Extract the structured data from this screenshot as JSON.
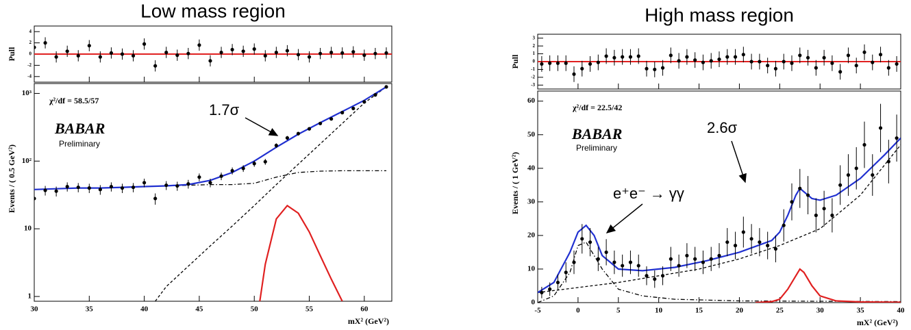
{
  "chart_data": [
    {
      "type": "scatter",
      "title": "Low mass region",
      "xlabel": "mX² (GeV²)",
      "xlim": [
        30,
        62.5
      ],
      "xticks": [
        30,
        35,
        40,
        45,
        50,
        55,
        60
      ],
      "x": [
        30,
        31,
        32,
        33,
        34,
        35,
        36,
        37,
        38,
        39,
        40,
        41,
        42,
        43,
        44,
        45,
        46,
        47,
        48,
        49,
        50,
        51,
        52,
        53,
        54,
        55,
        56,
        57,
        58,
        59,
        60,
        61,
        62
      ],
      "annotations": [
        "χ²/df = 58.5/57",
        "BABAR",
        "Preliminary",
        "1.7σ"
      ],
      "pull": {
        "ylabel": "Pull",
        "ylim": [
          -5,
          5
        ],
        "yticks": [
          -4,
          -2,
          0,
          2,
          4
        ],
        "reference": 0,
        "reference_color": "#e02020",
        "values": [
          1.2,
          2,
          -0.5,
          0.5,
          -0.3,
          1.5,
          -0.5,
          0.2,
          0,
          -0.3,
          1.8,
          -2.1,
          0.3,
          -0.2,
          0.1,
          1.6,
          -1.2,
          0.3,
          0.8,
          0.5,
          0.9,
          -0.3,
          0.3,
          0.6,
          -0.1,
          -0.5,
          0.1,
          0.3,
          0.2,
          0.4,
          -0.2,
          0.1,
          0.2
        ],
        "errors": [
          1,
          1,
          1,
          1,
          1,
          1,
          1,
          1,
          1,
          1,
          1,
          1,
          1,
          1,
          1,
          1,
          1,
          1,
          1,
          1,
          1,
          1,
          1,
          1,
          1,
          1,
          1,
          1,
          1,
          1,
          1,
          1,
          1
        ]
      },
      "main": {
        "ylabel": "Events / ( 0.5 GeV²)",
        "log": true,
        "ylim": [
          0.85,
          1400
        ],
        "yticks": [
          1,
          10,
          {
            "value": 100,
            "label": "10²"
          },
          {
            "value": 1000,
            "label": "10³"
          }
        ],
        "color": "#000000",
        "values": [
          28,
          37,
          36,
          42,
          41,
          40,
          38,
          42,
          40,
          41,
          48,
          28,
          44,
          43,
          46,
          58,
          48,
          60,
          72,
          78,
          92,
          98,
          170,
          220,
          255,
          300,
          360,
          420,
          520,
          600,
          750,
          950,
          1250
        ],
        "errors": [
          5,
          6,
          6,
          6.5,
          6.4,
          6.3,
          6.2,
          6.5,
          6.3,
          6.4,
          7,
          5.3,
          6.6,
          6.6,
          6.8,
          7.6,
          7,
          7.7,
          8.5,
          8.8,
          9.6,
          9.9,
          13,
          15,
          16,
          17,
          19,
          20,
          23,
          24,
          27,
          31,
          35
        ],
        "curves": [
          {
            "style": "dashed",
            "color": "#000000",
            "x": [
              41,
              42,
              44,
              46,
              48,
              50,
              52,
              54,
              56,
              58,
              60,
              62
            ],
            "values": [
              0.85,
              1.4,
              2.8,
              5.6,
              11,
              22,
              45,
              90,
              180,
              360,
              720,
              1250
            ]
          },
          {
            "style": "dashdot",
            "color": "#000000",
            "x": [
              30,
              32,
              34,
              36,
              38,
              40,
              42,
              44,
              46,
              48,
              50,
              52,
              54,
              56,
              58,
              60,
              62
            ],
            "values": [
              38,
              39,
              40,
              40,
              41,
              42,
              43,
              44,
              45,
              45,
              47,
              58,
              68,
              71,
              72,
              72,
              72
            ]
          },
          {
            "style": "solid",
            "color": "#e02020",
            "x": [
              50.5,
              51,
              52,
              53,
              54,
              55,
              56,
              57,
              58
            ],
            "values": [
              0.85,
              3,
              14,
              22,
              17,
              9,
              4,
              1.8,
              0.85
            ]
          },
          {
            "style": "solid",
            "color": "#2030d0",
            "x": [
              30,
              32,
              34,
              36,
              38,
              40,
              42,
              44,
              46,
              48,
              50,
              52,
              54,
              56,
              58,
              60,
              62
            ],
            "values": [
              38,
              39,
              40,
              40,
              41,
              42,
              43,
              45,
              52,
              68,
              100,
              160,
              250,
              370,
              540,
              790,
              1250
            ]
          }
        ]
      }
    },
    {
      "type": "scatter",
      "title": "High mass region",
      "xlabel": "mX² (GeV²)",
      "xlim": [
        -5,
        40
      ],
      "xticks": [
        -5,
        0,
        5,
        10,
        15,
        20,
        25,
        30,
        35,
        40
      ],
      "x": [
        -4.5,
        -3.5,
        -2.5,
        -1.5,
        -0.5,
        0.5,
        1.5,
        2.5,
        3.5,
        4.5,
        5.5,
        6.5,
        7.5,
        8.5,
        9.5,
        10.5,
        11.5,
        12.5,
        13.5,
        14.5,
        15.5,
        16.5,
        17.5,
        18.5,
        19.5,
        20.5,
        21.5,
        22.5,
        23.5,
        24.5,
        25.5,
        26.5,
        27.5,
        28.5,
        29.5,
        30.5,
        31.5,
        32.5,
        33.5,
        34.5,
        35.5,
        36.5,
        37.5,
        38.5,
        39.5
      ],
      "annotations": [
        "χ²/df = 22.5/42",
        "BABAR",
        "Preliminary",
        "2.6σ",
        "e⁺e⁻ → γγ"
      ],
      "pull": {
        "ylabel": "Pull",
        "ylim": [
          -3.5,
          3.5
        ],
        "yticks": [
          -3,
          -2,
          -1,
          0,
          1,
          2,
          3
        ],
        "reference": 0,
        "reference_color": "#e02020",
        "values": [
          -0.3,
          -0.2,
          -0.2,
          -0.2,
          -1.6,
          -0.9,
          -0.3,
          -0.1,
          0.7,
          0.5,
          0.6,
          0.6,
          0.7,
          -0.9,
          -1.0,
          -0.8,
          0.8,
          0.1,
          0.6,
          0.2,
          -0.1,
          0.1,
          0.3,
          0.6,
          0.6,
          0.9,
          0,
          0,
          -0.5,
          -0.9,
          0,
          -0.2,
          0.8,
          0.5,
          -0.8,
          0.5,
          -0.2,
          -1.3,
          0.8,
          -0.5,
          1.2,
          -0.1,
          0.9,
          -0.8,
          -0.3
        ],
        "errors": [
          1,
          1,
          1,
          1,
          1,
          1,
          1,
          1,
          1,
          1,
          1,
          1,
          1,
          1,
          1,
          1,
          1,
          1,
          1,
          1,
          1,
          1,
          1,
          1,
          1,
          1,
          1,
          1,
          1,
          1,
          1,
          1,
          1,
          1,
          1,
          1,
          1,
          1,
          1,
          1,
          1,
          1,
          1,
          1,
          1
        ]
      },
      "main": {
        "ylabel": "Events / ( 1 GeV²)",
        "log": false,
        "ylim": [
          0,
          63
        ],
        "yticks": [
          0,
          10,
          20,
          30,
          40,
          50,
          60
        ],
        "color": "#000000",
        "values": [
          3,
          4,
          6,
          9,
          12,
          19,
          18,
          13,
          15,
          12,
          11,
          12,
          11,
          8,
          7,
          8,
          13,
          11,
          14,
          13,
          12,
          13,
          14,
          18,
          17,
          21,
          19,
          18,
          17,
          16,
          23,
          30,
          34,
          32,
          26,
          28,
          26,
          35,
          38,
          40,
          47,
          38,
          52,
          42,
          49
        ],
        "errors": [
          1.7,
          2,
          2.4,
          3,
          3.5,
          4.4,
          4.2,
          3.6,
          3.9,
          3.5,
          3.3,
          3.5,
          3.3,
          2.8,
          2.6,
          2.8,
          3.6,
          3.3,
          3.7,
          3.6,
          3.5,
          3.6,
          3.7,
          4.2,
          4.1,
          4.6,
          4.4,
          4.2,
          4.1,
          4,
          4.8,
          5.5,
          5.8,
          5.7,
          5.1,
          5.3,
          5.1,
          5.9,
          6.2,
          6.3,
          6.9,
          6.2,
          7.2,
          6.5,
          7
        ],
        "curves": [
          {
            "style": "dashed",
            "color": "#000000",
            "x": [
              -5,
              5,
              10,
              15,
              20,
              25,
              30,
              35,
              40
            ],
            "values": [
              3,
              6,
              8,
              10,
              13,
              17,
              22,
              32,
              47
            ]
          },
          {
            "style": "dashdot",
            "color": "#000000",
            "x": [
              -5,
              -3,
              -1,
              0,
              1,
              3,
              5,
              8,
              12,
              20,
              40
            ],
            "values": [
              0,
              2,
              9,
              17,
              18,
              10,
              4,
              2,
              1,
              0.5,
              0.3
            ]
          },
          {
            "style": "solid",
            "color": "#e02020",
            "x": [
              22,
              24,
              25,
              26,
              27,
              27.5,
              28,
              29,
              30,
              32,
              35,
              40
            ],
            "values": [
              0,
              0.3,
              1,
              4,
              8,
              10,
              9,
              5,
              2,
              0.5,
              0.2,
              0.1
            ]
          },
          {
            "style": "solid",
            "color": "#2030d0",
            "x": [
              -5,
              -3,
              -1,
              0,
              1,
              2,
              3,
              5,
              8,
              12,
              16,
              20,
              24,
              25,
              26,
              27,
              27.5,
              28,
              29,
              30,
              32,
              35,
              38,
              40
            ],
            "values": [
              3,
              6,
              15,
              21,
              23,
              20,
              14,
              10,
              9.5,
              10.5,
              12.5,
              15,
              18.5,
              21,
              26,
              32,
              34,
              33,
              31,
              30.5,
              32,
              37,
              44,
              49
            ]
          }
        ]
      }
    }
  ]
}
